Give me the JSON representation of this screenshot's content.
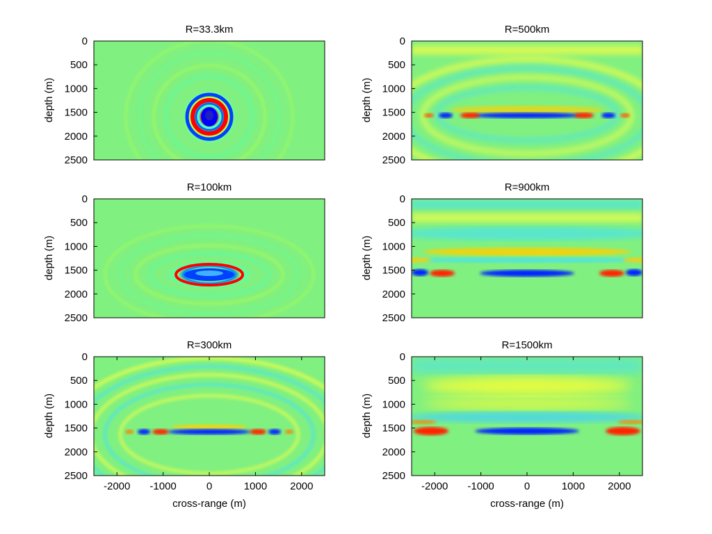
{
  "colors": {
    "colormap": [
      "#00008f",
      "#0000ff",
      "#00ffff",
      "#80ff80",
      "#ffff00",
      "#ff0000",
      "#800000"
    ],
    "background": "#80f080",
    "figure_background": "#ffffff"
  },
  "chart_data": [
    {
      "type": "heatmap",
      "title": "R=33.3km",
      "xlabel": "",
      "ylabel": "depth (m)",
      "xlim": [
        -2500,
        2500
      ],
      "ylim": [
        0,
        2500
      ],
      "y_reversed": true,
      "xticks": [],
      "yticks": [
        0,
        500,
        1000,
        1500,
        2000,
        2500
      ],
      "grid": false,
      "pattern": "concentric rings centered at cross-range 0 m, depth 1600 m"
    },
    {
      "type": "heatmap",
      "title": "R=500km",
      "xlabel": "",
      "ylabel": "depth (m)",
      "xlim": [
        -2500,
        2500
      ],
      "ylim": [
        0,
        2500
      ],
      "y_reversed": true,
      "xticks": [],
      "yticks": [
        0,
        500,
        1000,
        1500,
        2000,
        2500
      ],
      "grid": false,
      "pattern": "flattened arcs above a horizontal band near depth 1600 m"
    },
    {
      "type": "heatmap",
      "title": "R=100km",
      "xlabel": "",
      "ylabel": "depth (m)",
      "xlim": [
        -2500,
        2500
      ],
      "ylim": [
        0,
        2500
      ],
      "y_reversed": true,
      "xticks": [],
      "yticks": [
        0,
        500,
        1000,
        1500,
        2000,
        2500
      ],
      "grid": false,
      "pattern": "elliptical rings centered at cross-range 0 m, depth 1600 m"
    },
    {
      "type": "heatmap",
      "title": "R=900km",
      "xlabel": "",
      "ylabel": "depth (m)",
      "xlim": [
        -2500,
        2500
      ],
      "ylim": [
        0,
        2500
      ],
      "y_reversed": true,
      "xticks": [],
      "yticks": [
        0,
        500,
        1000,
        1500,
        2000,
        2500
      ],
      "grid": false,
      "pattern": "horizontal bands, strong blue band near depth 1600 m with red lobes at the sides"
    },
    {
      "type": "heatmap",
      "title": "R=300km",
      "xlabel": "cross-range (m)",
      "ylabel": "depth (m)",
      "xlim": [
        -2500,
        2500
      ],
      "ylim": [
        0,
        2500
      ],
      "y_reversed": true,
      "xticks": [
        -2000,
        -1000,
        0,
        1000,
        2000
      ],
      "yticks": [
        0,
        500,
        1000,
        1500,
        2000,
        2500
      ],
      "grid": false,
      "pattern": "wide arcs above a horizontal band near depth 1600 m"
    },
    {
      "type": "heatmap",
      "title": "R=1500km",
      "xlabel": "cross-range (m)",
      "ylabel": "depth (m)",
      "xlim": [
        -2500,
        2500
      ],
      "ylim": [
        0,
        2500
      ],
      "y_reversed": true,
      "xticks": [
        -2000,
        -1000,
        0,
        1000,
        2000
      ],
      "yticks": [
        0,
        500,
        1000,
        1500,
        2000,
        2500
      ],
      "grid": false,
      "pattern": "broad horizontal bands, blue band near depth 1600 m with red lobes at both edges"
    }
  ]
}
